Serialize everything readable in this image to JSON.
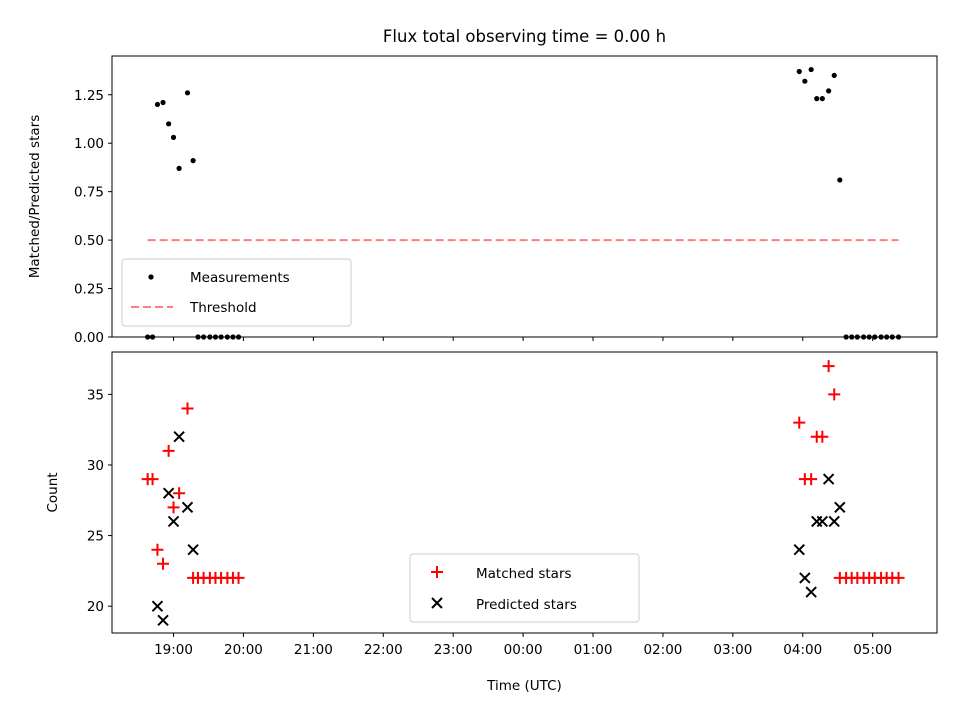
{
  "figure": {
    "title": "Flux total observing time = 0.00 h"
  },
  "chart_data": [
    {
      "type": "scatter",
      "panel": "top",
      "ylabel": "Matched/Predicted stars",
      "ylim": [
        0.0,
        1.45
      ],
      "yticks": [
        0.0,
        0.25,
        0.5,
        0.75,
        1.0,
        1.25
      ],
      "ytick_labels": [
        "0.00",
        "0.25",
        "0.50",
        "0.75",
        "1.00",
        "1.25"
      ],
      "x_unit": "hours since 19:00 UTC",
      "xlim": [
        -0.88,
        10.92
      ],
      "xtick_labels_shown": false,
      "legend_position": "lower-left",
      "series": [
        {
          "name": "Measurements",
          "kind": "points",
          "color": "#000000",
          "x": [
            -0.37,
            -0.3,
            -0.23,
            -0.15,
            -0.07,
            0.0,
            0.08,
            0.2,
            0.28,
            0.35,
            0.43,
            0.52,
            0.6,
            0.68,
            0.77,
            0.85,
            0.93,
            8.95,
            9.03,
            9.12,
            9.2,
            9.28,
            9.37,
            9.45,
            9.53,
            9.62,
            9.7,
            9.78,
            9.87,
            9.95,
            10.03,
            10.12,
            10.2,
            10.28,
            10.37
          ],
          "y": [
            0.0,
            0.0,
            1.2,
            1.21,
            1.1,
            1.03,
            0.87,
            1.26,
            0.91,
            0.0,
            0.0,
            0.0,
            0.0,
            0.0,
            0.0,
            0.0,
            0.0,
            1.37,
            1.32,
            1.38,
            1.23,
            1.23,
            1.27,
            1.35,
            0.81,
            0.0,
            0.0,
            0.0,
            0.0,
            0.0,
            0.0,
            0.0,
            0.0,
            0.0,
            0.0
          ]
        },
        {
          "name": "Threshold",
          "kind": "dashed-line",
          "color": "#ff7f7f",
          "x": [
            -0.37,
            10.37
          ],
          "y": [
            0.5,
            0.5
          ]
        }
      ]
    },
    {
      "type": "scatter",
      "panel": "bottom",
      "ylabel": "Count",
      "xlabel": "Time (UTC)",
      "ylim": [
        18.1,
        38.0
      ],
      "yticks": [
        20,
        25,
        30,
        35
      ],
      "ytick_labels": [
        "20",
        "25",
        "30",
        "35"
      ],
      "x_unit": "hours since 19:00 UTC",
      "xlim": [
        -0.88,
        10.92
      ],
      "xticks": [
        0,
        1,
        2,
        3,
        4,
        5,
        6,
        7,
        8,
        9,
        10
      ],
      "xtick_labels": [
        "19:00",
        "20:00",
        "21:00",
        "22:00",
        "23:00",
        "00:00",
        "01:00",
        "02:00",
        "03:00",
        "04:00",
        "05:00"
      ],
      "legend_position": "lower-center",
      "series": [
        {
          "name": "Matched stars",
          "marker": "plus",
          "color": "#ff0000",
          "x": [
            -0.37,
            -0.3,
            -0.23,
            -0.15,
            -0.07,
            0.0,
            0.08,
            0.2,
            0.28,
            0.35,
            0.43,
            0.52,
            0.6,
            0.68,
            0.77,
            0.85,
            0.93,
            8.95,
            9.03,
            9.12,
            9.2,
            9.28,
            9.37,
            9.45,
            9.53,
            9.62,
            9.7,
            9.78,
            9.87,
            9.95,
            10.03,
            10.12,
            10.2,
            10.28,
            10.37
          ],
          "y": [
            29,
            29,
            24,
            23,
            31,
            27,
            28,
            34,
            22,
            22,
            22,
            22,
            22,
            22,
            22,
            22,
            22,
            33,
            29,
            29,
            32,
            32,
            37,
            35,
            22,
            22,
            22,
            22,
            22,
            22,
            22,
            22,
            22,
            22,
            22
          ]
        },
        {
          "name": "Predicted stars",
          "marker": "x",
          "color": "#000000",
          "x": [
            -0.23,
            -0.15,
            -0.07,
            0.0,
            0.08,
            0.2,
            0.28,
            8.95,
            9.03,
            9.12,
            9.2,
            9.28,
            9.37,
            9.45,
            9.53
          ],
          "y": [
            20,
            19,
            28,
            26,
            32,
            27,
            24,
            24,
            22,
            21,
            26,
            26,
            29,
            26,
            27
          ]
        }
      ]
    }
  ]
}
